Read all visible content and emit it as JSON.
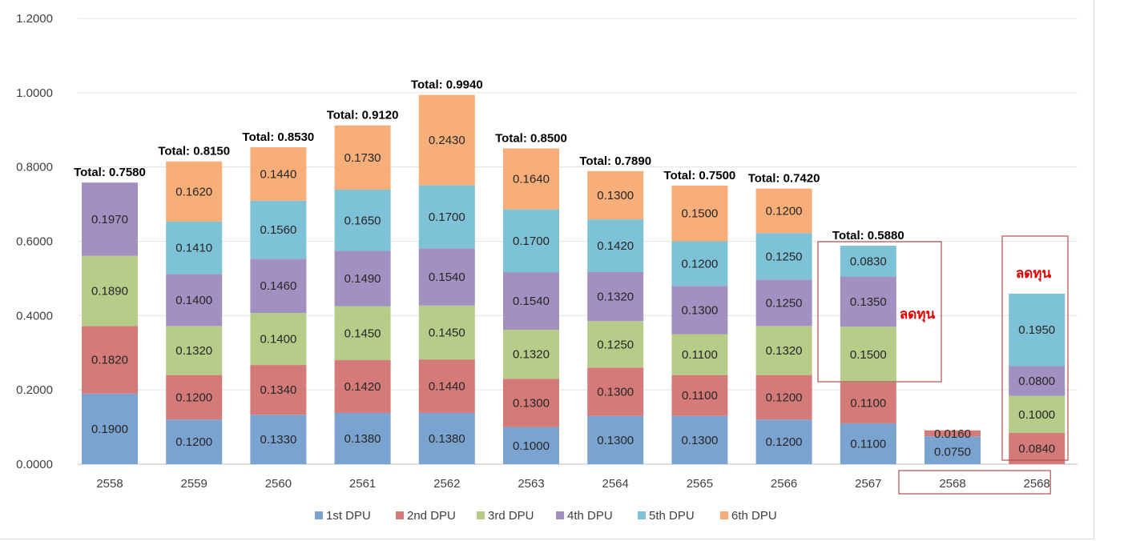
{
  "chart_data": {
    "type": "bar",
    "stacked": true,
    "title": "",
    "xlabel": "",
    "ylabel": "",
    "ylim": [
      0,
      1.2
    ],
    "yticks": [
      "0.0000",
      "0.2000",
      "0.4000",
      "0.6000",
      "0.8000",
      "1.0000",
      "1.2000"
    ],
    "ytick_values": [
      0,
      0.2,
      0.4,
      0.6,
      0.8,
      1.0,
      1.2
    ],
    "grid": true,
    "legend_position": "bottom",
    "categories": [
      "2558",
      "2559",
      "2560",
      "2561",
      "2562",
      "2563",
      "2564",
      "2565",
      "2566",
      "2567",
      "2568",
      "2568"
    ],
    "series": [
      {
        "name": "1st DPU",
        "color": "#7ba3d0",
        "values": [
          0.19,
          0.12,
          0.133,
          0.138,
          0.138,
          0.1,
          0.13,
          0.13,
          0.12,
          0.11,
          0.075,
          null
        ]
      },
      {
        "name": "2nd DPU",
        "color": "#d47a78",
        "values": [
          0.182,
          0.12,
          0.134,
          0.142,
          0.144,
          0.13,
          0.13,
          0.11,
          0.12,
          0.11,
          0.016,
          0.084
        ]
      },
      {
        "name": "3rd DPU",
        "color": "#b6cc88",
        "values": [
          0.189,
          0.132,
          0.14,
          0.145,
          0.145,
          0.132,
          0.125,
          0.11,
          0.132,
          0.15,
          null,
          0.1
        ]
      },
      {
        "name": "4th DPU",
        "color": "#a290c0",
        "values": [
          0.197,
          0.14,
          0.146,
          0.149,
          0.154,
          0.154,
          0.132,
          0.13,
          0.125,
          0.135,
          null,
          0.08
        ]
      },
      {
        "name": "5th DPU",
        "color": "#7dc2d6",
        "values": [
          null,
          0.141,
          0.156,
          0.165,
          0.17,
          0.17,
          0.142,
          0.12,
          0.125,
          0.083,
          null,
          0.195
        ]
      },
      {
        "name": "6th DPU",
        "color": "#f7ae78",
        "values": [
          null,
          0.162,
          0.144,
          0.173,
          0.243,
          0.164,
          0.13,
          0.15,
          0.12,
          null,
          null,
          null
        ]
      }
    ],
    "totals": [
      "Total: 0.7580",
      "Total: 0.8150",
      "Total: 0.8530",
      "Total: 0.9120",
      "Total: 0.9940",
      "Total: 0.8500",
      "Total: 0.7890",
      "Total: 0.7500",
      "Total: 0.7420",
      "Total: 0.5880",
      null,
      null
    ],
    "annotations": [
      {
        "text": "ลดทุน",
        "category_index": 9,
        "boxed_series": [
          "3rd DPU",
          "4th DPU",
          "5th DPU"
        ],
        "color": "#e00000"
      },
      {
        "text": "ลดทุน",
        "category_index": 11,
        "boxed_series": [
          "2nd DPU",
          "3rd DPU",
          "4th DPU",
          "5th DPU"
        ],
        "color": "#e00000"
      },
      {
        "text": "",
        "type": "x-label-box",
        "category_indices": [
          10,
          11
        ],
        "color": "#b05050"
      }
    ]
  }
}
